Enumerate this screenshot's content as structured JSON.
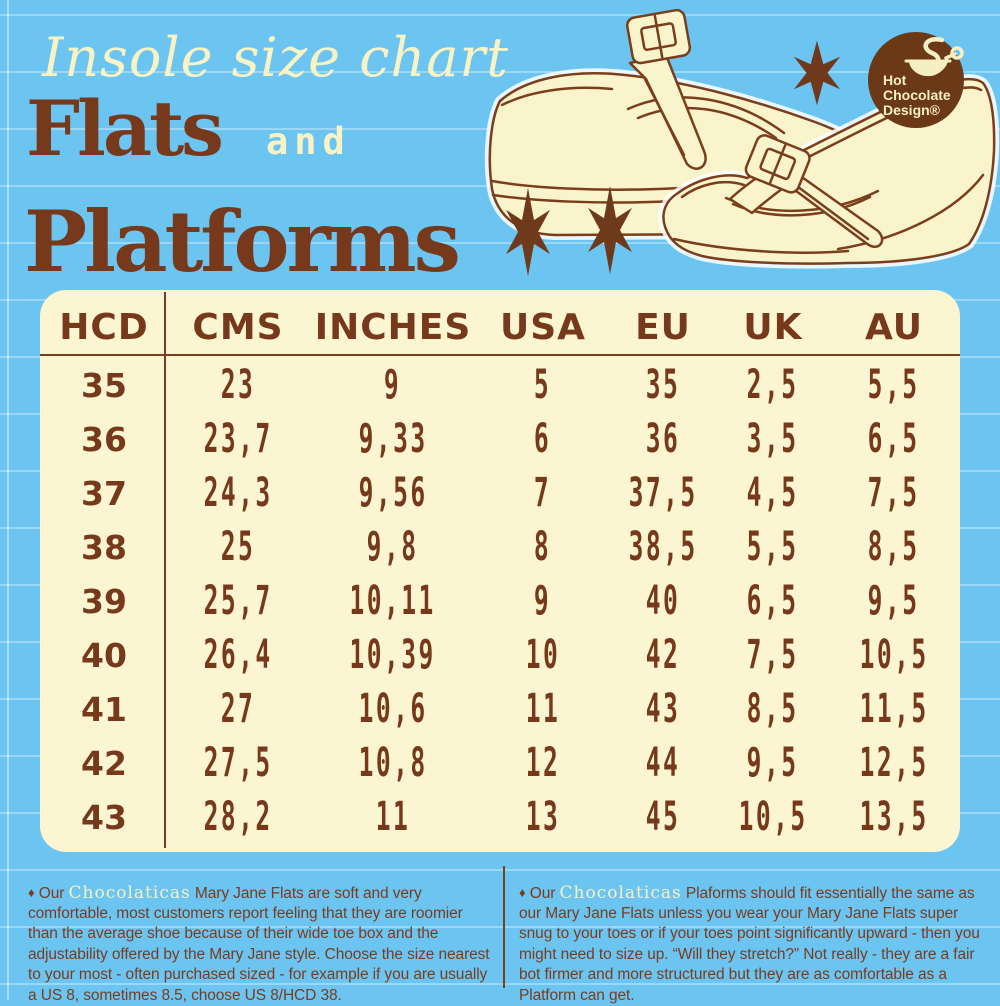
{
  "header": {
    "title_script": "Insole size chart",
    "title_flats": "Flats",
    "title_and": "and",
    "title_platforms": "Platforms"
  },
  "logo": {
    "line1": "Hot",
    "line2": "Chocolate",
    "line3": "Design®",
    "icon": "steaming-cup-icon"
  },
  "decorations": {
    "star_icon": "six-point-sparkle-star",
    "shoe1": "platform-mary-jane-shoe",
    "shoe2": "flat-mary-jane-shoe"
  },
  "table": {
    "headers": [
      "HCD",
      "CMS",
      "INCHES",
      "USA",
      "EU",
      "UK",
      "AU"
    ],
    "rows": [
      [
        "35",
        "23",
        "9",
        "5",
        "35",
        "2,5",
        "5,5"
      ],
      [
        "36",
        "23,7",
        "9,33",
        "6",
        "36",
        "3,5",
        "6,5"
      ],
      [
        "37",
        "24,3",
        "9,56",
        "7",
        "37,5",
        "4,5",
        "7,5"
      ],
      [
        "38",
        "25",
        "9,8",
        "8",
        "38,5",
        "5,5",
        "8,5"
      ],
      [
        "39",
        "25,7",
        "10,11",
        "9",
        "40",
        "6,5",
        "9,5"
      ],
      [
        "40",
        "26,4",
        "10,39",
        "10",
        "42",
        "7,5",
        "10,5"
      ],
      [
        "41",
        "27",
        "10,6",
        "11",
        "43",
        "8,5",
        "11,5"
      ],
      [
        "42",
        "27,5",
        "10,8",
        "12",
        "44",
        "9,5",
        "12,5"
      ],
      [
        "43",
        "28,2",
        "11",
        "13",
        "45",
        "10,5",
        "13,5"
      ]
    ]
  },
  "footer": {
    "left": {
      "bullet": "♦",
      "prefix": "Our",
      "brand": "Chocolaticas",
      "text": "Mary Jane Flats are soft and very comfortable, most customers report feeling that they are roomier than the average shoe because of their wide toe box and the adjustability offered by the Mary Jane style. Choose the size nearest to your most - often purchased sized - for example if you are usually a US 8, sometimes 8.5, choose US 8/HCD 38."
    },
    "right": {
      "bullet": "♦",
      "prefix": "Our",
      "brand": "Chocolaticas",
      "text": "Plaforms should fit essentially the same as our Mary Jane Flats unless you wear your Mary Jane Flats super snug to your toes or if your toes point significantly upward - then you might need to size  up. “Will they stretch?” Not really - they are a fair bot firmer and more structured but they are as comfortable as a Platform can get."
    }
  },
  "colors": {
    "background": "#6CC4F1",
    "cream_panel": "#FBF6D1",
    "cream_text": "#F8F3C5",
    "brown_text": "#76391B",
    "logo_brown": "#6C3917"
  }
}
